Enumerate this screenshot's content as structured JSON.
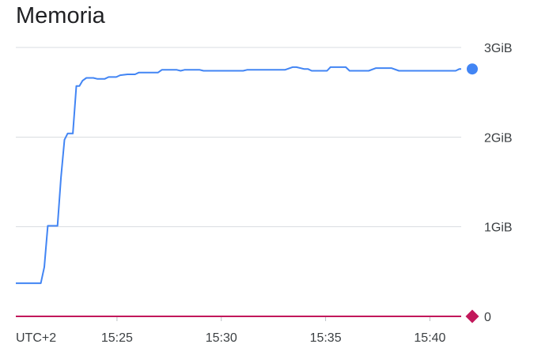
{
  "title": "Memoria",
  "chart_data": {
    "type": "line",
    "title": "Memoria",
    "timezone_label": "UTC+2",
    "x_range": [
      "15:20:09",
      "15:41:30"
    ],
    "x_ticks": [
      "15:25",
      "15:30",
      "15:35",
      "15:40"
    ],
    "y_unit": "GiB",
    "y_ticks": [
      {
        "value": 0,
        "label": "0"
      },
      {
        "value": 1,
        "label": "1GiB"
      },
      {
        "value": 2,
        "label": "2GiB"
      },
      {
        "value": 3,
        "label": "3GiB"
      }
    ],
    "ylim": [
      0,
      3
    ],
    "grid": true,
    "series": [
      {
        "color": "#4285f4",
        "points": [
          [
            "15:20:09",
            0.37
          ],
          [
            "15:21:21",
            0.37
          ],
          [
            "15:21:31",
            0.55
          ],
          [
            "15:21:41",
            1.01
          ],
          [
            "15:22:09",
            1.01
          ],
          [
            "15:22:19",
            1.55
          ],
          [
            "15:22:29",
            1.97
          ],
          [
            "15:22:38",
            2.04
          ],
          [
            "15:22:53",
            2.04
          ],
          [
            "15:23:03",
            2.57
          ],
          [
            "15:23:12",
            2.57
          ],
          [
            "15:23:21",
            2.63
          ],
          [
            "15:23:32",
            2.66
          ],
          [
            "15:23:52",
            2.66
          ],
          [
            "15:24:03",
            2.65
          ],
          [
            "15:24:25",
            2.65
          ],
          [
            "15:24:36",
            2.67
          ],
          [
            "15:24:58",
            2.67
          ],
          [
            "15:25:09",
            2.69
          ],
          [
            "15:25:30",
            2.7
          ],
          [
            "15:25:52",
            2.7
          ],
          [
            "15:26:03",
            2.72
          ],
          [
            "15:26:58",
            2.72
          ],
          [
            "15:27:09",
            2.75
          ],
          [
            "15:27:52",
            2.75
          ],
          [
            "15:28:03",
            2.74
          ],
          [
            "15:28:14",
            2.75
          ],
          [
            "15:28:58",
            2.75
          ],
          [
            "15:29:09",
            2.74
          ],
          [
            "15:31:03",
            2.74
          ],
          [
            "15:31:14",
            2.75
          ],
          [
            "15:33:03",
            2.75
          ],
          [
            "15:33:25",
            2.78
          ],
          [
            "15:33:36",
            2.78
          ],
          [
            "15:33:58",
            2.76
          ],
          [
            "15:34:09",
            2.76
          ],
          [
            "15:34:20",
            2.74
          ],
          [
            "15:35:04",
            2.74
          ],
          [
            "15:35:14",
            2.78
          ],
          [
            "15:35:58",
            2.78
          ],
          [
            "15:36:09",
            2.74
          ],
          [
            "15:37:04",
            2.74
          ],
          [
            "15:37:25",
            2.77
          ],
          [
            "15:38:09",
            2.77
          ],
          [
            "15:38:31",
            2.74
          ],
          [
            "15:41:14",
            2.74
          ],
          [
            "15:41:25",
            2.76
          ],
          [
            "15:41:30",
            2.76
          ]
        ]
      },
      {
        "color": "#c2185b",
        "points": [
          [
            "15:20:09",
            0.0
          ],
          [
            "15:41:30",
            0.0
          ]
        ]
      }
    ]
  }
}
